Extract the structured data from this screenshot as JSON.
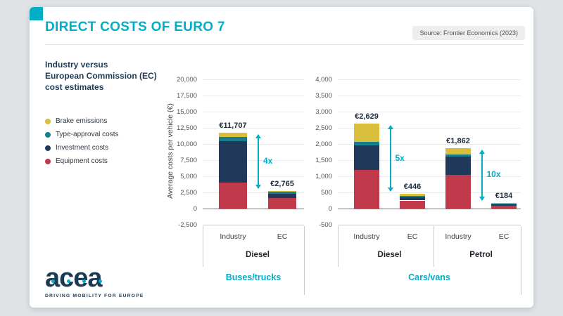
{
  "colors": {
    "accent": "#00aec7",
    "navy": "#1d3a55",
    "background": "#e0e3e6",
    "brake_emissions": "#d9bf3c",
    "type_approval": "#177e8e",
    "investment": "#20395b",
    "equipment": "#c03a4b"
  },
  "header": {
    "title": "DIRECT COSTS OF EURO 7",
    "source": "Source: Frontier Economics (2023)"
  },
  "intro": {
    "lines": [
      "Industry versus",
      "European Commission (EC)",
      "cost estimates"
    ]
  },
  "legend": {
    "items": [
      {
        "label": "Brake emissions",
        "color": "#d9bf3c"
      },
      {
        "label": "Type-approval costs",
        "color": "#177e8e"
      },
      {
        "label": "Investment costs",
        "color": "#20395b"
      },
      {
        "label": "Equipment costs",
        "color": "#c03a4b"
      }
    ]
  },
  "y_axis_title": "Average costs per vehicle (€)",
  "logo": {
    "wordmark": "acea",
    "tagline": "DRIVING MOBILITY FOR EUROPE"
  },
  "chart_data": [
    {
      "type": "bar",
      "stacked": true,
      "title": "Buses/trucks",
      "ylabel": "Average costs per vehicle (€)",
      "ylim": [
        -2500,
        20000
      ],
      "ytick_step": 2500,
      "grid": true,
      "groups": [
        {
          "label": "Diesel",
          "multiplier": "4x",
          "bars": [
            {
              "category": "Industry",
              "total": 11707,
              "total_label": "€11,707",
              "segments": {
                "Equipment costs": 4000,
                "Investment costs": 6400,
                "Type-approval costs": 700,
                "Brake emissions": 607
              }
            },
            {
              "category": "EC",
              "total": 2765,
              "total_label": "€2,765",
              "segments": {
                "Equipment costs": 1600,
                "Investment costs": 700,
                "Type-approval costs": 300,
                "Brake emissions": 165
              }
            }
          ]
        }
      ]
    },
    {
      "type": "bar",
      "stacked": true,
      "title": "Cars/vans",
      "ylabel": "Average costs per vehicle (€)",
      "ylim": [
        -500,
        4000
      ],
      "ytick_step": 500,
      "grid": true,
      "groups": [
        {
          "label": "Diesel",
          "multiplier": "5x",
          "bars": [
            {
              "category": "Industry",
              "total": 2629,
              "total_label": "€2,629",
              "segments": {
                "Equipment costs": 1200,
                "Investment costs": 750,
                "Type-approval costs": 120,
                "Brake emissions": 559
              }
            },
            {
              "category": "EC",
              "total": 446,
              "total_label": "€446",
              "segments": {
                "Equipment costs": 250,
                "Investment costs": 90,
                "Type-approval costs": 60,
                "Brake emissions": 46
              }
            }
          ]
        },
        {
          "label": "Petrol",
          "multiplier": "10x",
          "bars": [
            {
              "category": "Industry",
              "total": 1862,
              "total_label": "€1,862",
              "segments": {
                "Equipment costs": 1050,
                "Investment costs": 550,
                "Type-approval costs": 80,
                "Brake emissions": 182
              }
            },
            {
              "category": "EC",
              "total": 184,
              "total_label": "€184",
              "segments": {
                "Equipment costs": 80,
                "Investment costs": 50,
                "Type-approval costs": 30,
                "Brake emissions": 24
              }
            }
          ]
        }
      ]
    }
  ]
}
